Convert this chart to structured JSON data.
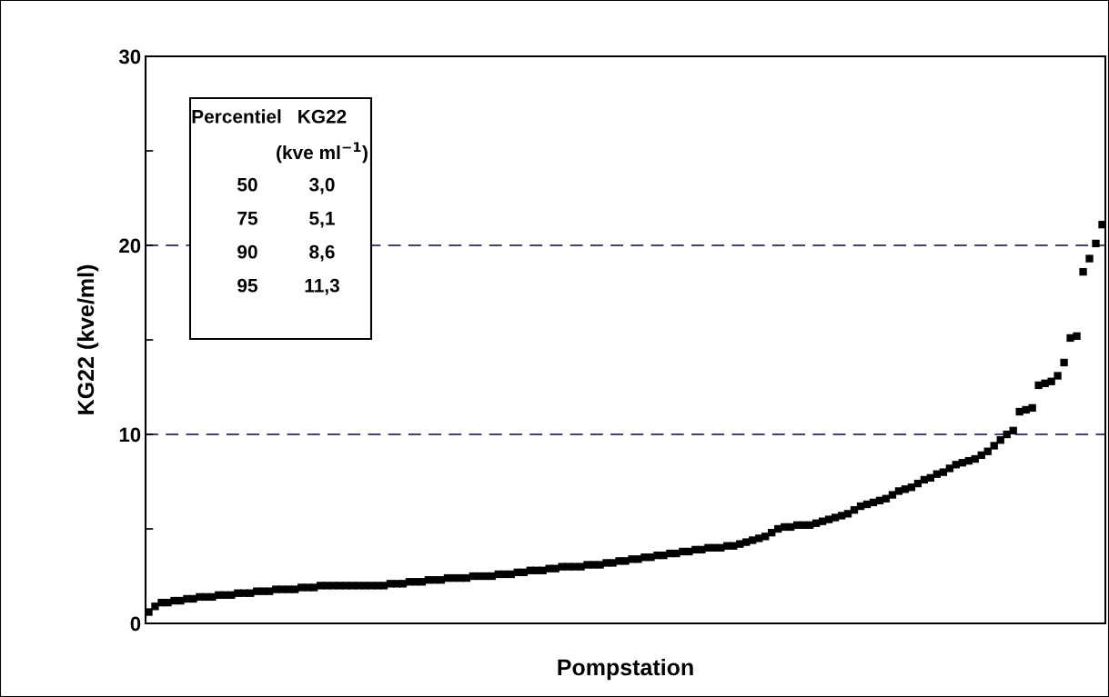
{
  "chart_data": {
    "type": "scatter",
    "xlabel": "Pompstation",
    "ylabel": "KG22 (kve/ml)",
    "categories": [
      null,
      null,
      null,
      null,
      null,
      null,
      null,
      null,
      null,
      null,
      null,
      null,
      null,
      null,
      null,
      null,
      null,
      null,
      null,
      null,
      null,
      null,
      null,
      null,
      null,
      null,
      null,
      null,
      null,
      null,
      null,
      null,
      null,
      null,
      null,
      null,
      null,
      null,
      null,
      null,
      null,
      null,
      null,
      null,
      null,
      null,
      null,
      null,
      null,
      null,
      null,
      null,
      null,
      null,
      null,
      null,
      null,
      null,
      null,
      null,
      null,
      null,
      null,
      null,
      null,
      null,
      null,
      null,
      null,
      null,
      null,
      null,
      null,
      null,
      null,
      null,
      null,
      null,
      null,
      null,
      null,
      null,
      null,
      null,
      null,
      null,
      null,
      null,
      null,
      null,
      null,
      null,
      null,
      null,
      null,
      null,
      null,
      null,
      null,
      null,
      null,
      null,
      null,
      null,
      null,
      null,
      null,
      null,
      null,
      null,
      null,
      null,
      null,
      null,
      null,
      null,
      null,
      null,
      null,
      null,
      null,
      null,
      null,
      null,
      null,
      null,
      null,
      null,
      null,
      null,
      null,
      null,
      null,
      null,
      null,
      null,
      null,
      null,
      null,
      null,
      null,
      null,
      null,
      null,
      null,
      null,
      null,
      null,
      null,
      null,
      null
    ],
    "series": [
      {
        "color": "#000000",
        "values": [
          0.6,
          0.9,
          1.1,
          1.1,
          1.2,
          1.2,
          1.3,
          1.3,
          1.4,
          1.4,
          1.4,
          1.5,
          1.5,
          1.5,
          1.6,
          1.6,
          1.6,
          1.7,
          1.7,
          1.7,
          1.8,
          1.8,
          1.8,
          1.8,
          1.9,
          1.9,
          1.9,
          2.0,
          2.0,
          2.0,
          2.0,
          2.0,
          2.0,
          2.0,
          2.0,
          2.0,
          2.0,
          2.0,
          2.1,
          2.1,
          2.1,
          2.2,
          2.2,
          2.2,
          2.3,
          2.3,
          2.3,
          2.4,
          2.4,
          2.4,
          2.4,
          2.5,
          2.5,
          2.5,
          2.5,
          2.6,
          2.6,
          2.6,
          2.7,
          2.7,
          2.8,
          2.8,
          2.8,
          2.9,
          2.9,
          3.0,
          3.0,
          3.0,
          3.0,
          3.1,
          3.1,
          3.1,
          3.2,
          3.2,
          3.3,
          3.3,
          3.4,
          3.4,
          3.5,
          3.5,
          3.6,
          3.6,
          3.7,
          3.7,
          3.8,
          3.8,
          3.9,
          3.9,
          4.0,
          4.0,
          4.0,
          4.1,
          4.1,
          4.2,
          4.3,
          4.4,
          4.5,
          4.6,
          4.8,
          5.0,
          5.1,
          5.1,
          5.2,
          5.2,
          5.2,
          5.3,
          5.4,
          5.5,
          5.6,
          5.7,
          5.8,
          6.0,
          6.2,
          6.3,
          6.4,
          6.5,
          6.6,
          6.8,
          7.0,
          7.1,
          7.2,
          7.4,
          7.6,
          7.7,
          7.9,
          8.0,
          8.2,
          8.4,
          8.5,
          8.6,
          8.7,
          8.9,
          9.1,
          9.4,
          9.7,
          10.0,
          10.2,
          11.2,
          11.3,
          11.4,
          12.6,
          12.7,
          12.8,
          13.1,
          13.8,
          15.1,
          15.2,
          18.6,
          19.3,
          20.1,
          21.1
        ]
      }
    ],
    "marker": "square",
    "ylim": [
      0,
      30
    ],
    "yticks": [
      0,
      {
        "value": 5,
        "label": null
      },
      10,
      {
        "value": 15,
        "label": null
      },
      20,
      {
        "value": 25,
        "label": null
      },
      30
    ],
    "tick_labels": "y",
    "grid": false,
    "legend": false,
    "ref_lines": [
      {
        "axis": "y",
        "value": 10,
        "color": "#000080",
        "line_style": "dashed"
      },
      {
        "axis": "y",
        "value": 20,
        "color": "#000080",
        "line_style": "dashed"
      }
    ],
    "annotations": [
      "Percentiel",
      "KG22",
      "(kve ml$^{−1}$)",
      "50",
      "3,0",
      "75",
      "5,1",
      "90",
      "8,6",
      "95",
      "11,3"
    ]
  }
}
